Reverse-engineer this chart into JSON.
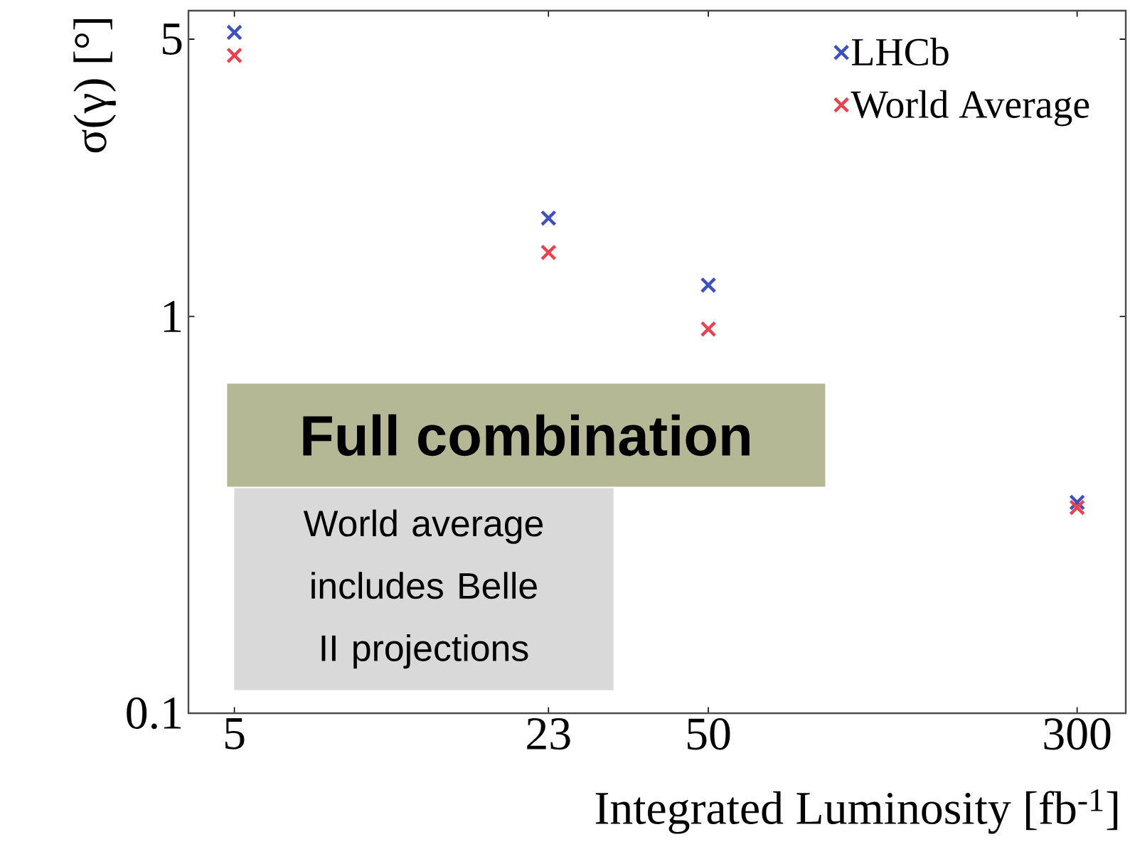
{
  "chart_data": {
    "type": "scatter",
    "xlabel": "Integrated Luminosity [fb$^{-1}$]",
    "ylabel": "σ(γ) [°]",
    "x": [
      5,
      23,
      50,
      300
    ],
    "series": [
      {
        "name": "LHCb",
        "color": "#3f4fbf",
        "marker": "cross",
        "values": [
          5.2,
          1.77,
          1.2,
          0.34
        ]
      },
      {
        "name": "World Average",
        "color": "#e8434f",
        "marker": "cross",
        "values": [
          4.55,
          1.45,
          0.93,
          0.33
        ]
      }
    ],
    "xlim": [
      4,
      380
    ],
    "ylim": [
      0.1,
      5.9
    ],
    "xticks": [
      5,
      23,
      50,
      300
    ],
    "yticks": [
      0.1,
      1,
      5
    ],
    "log": "xy",
    "legend": "top right",
    "annotations": [
      "Full combination",
      "World average includes Belle II projections"
    ]
  }
}
